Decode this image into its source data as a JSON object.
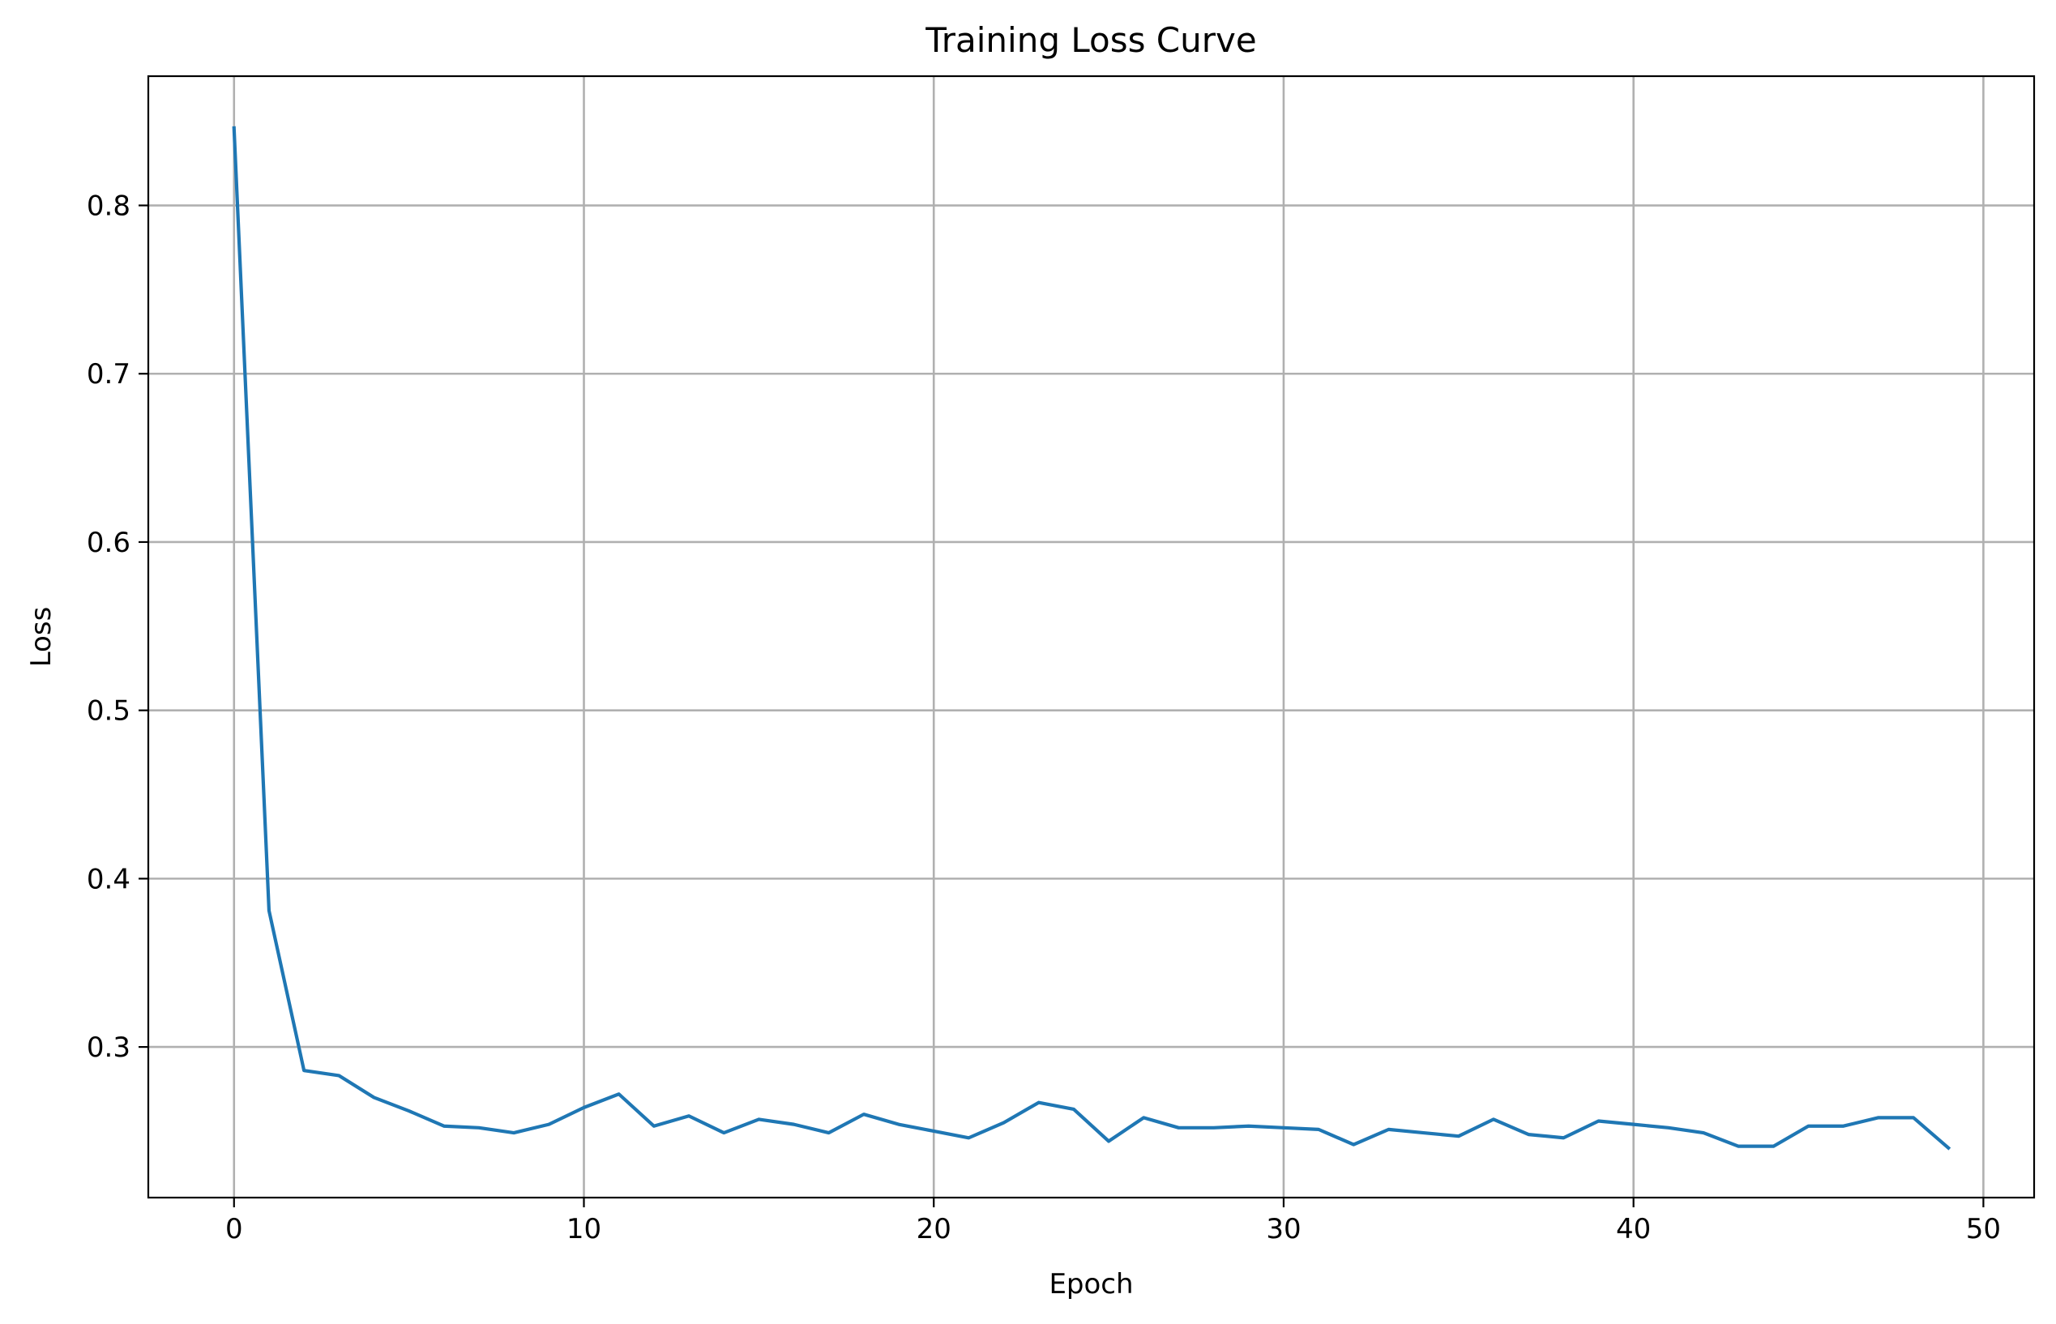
{
  "chart_data": {
    "type": "line",
    "title": "Training Loss Curve",
    "xlabel": "Epoch",
    "ylabel": "Loss",
    "xlim": [
      -2.45,
      51.45
    ],
    "ylim": [
      0.2105,
      0.8768
    ],
    "xticks": [
      0,
      10,
      20,
      30,
      40,
      50
    ],
    "yticks": [
      0.3,
      0.4,
      0.5,
      0.6,
      0.7,
      0.8
    ],
    "grid": true,
    "series": [
      {
        "color": "#1f77b4",
        "x": [
          0,
          1,
          2,
          3,
          4,
          5,
          6,
          7,
          8,
          9,
          10,
          11,
          12,
          13,
          14,
          15,
          16,
          17,
          18,
          19,
          20,
          21,
          22,
          23,
          24,
          25,
          26,
          27,
          28,
          29,
          30,
          31,
          32,
          33,
          34,
          35,
          36,
          37,
          38,
          39,
          40,
          41,
          42,
          43,
          44,
          45,
          46,
          47,
          48,
          49
        ],
        "y": [
          0.846,
          0.381,
          0.286,
          0.283,
          0.27,
          0.262,
          0.253,
          0.252,
          0.249,
          0.254,
          0.264,
          0.272,
          0.253,
          0.259,
          0.249,
          0.257,
          0.254,
          0.249,
          0.26,
          0.254,
          0.25,
          0.246,
          0.255,
          0.267,
          0.263,
          0.244,
          0.258,
          0.252,
          0.252,
          0.253,
          0.252,
          0.251,
          0.242,
          0.251,
          0.249,
          0.247,
          0.257,
          0.248,
          0.246,
          0.256,
          0.254,
          0.252,
          0.249,
          0.241,
          0.241,
          0.253,
          0.253,
          0.258,
          0.258,
          0.24
        ]
      }
    ]
  }
}
